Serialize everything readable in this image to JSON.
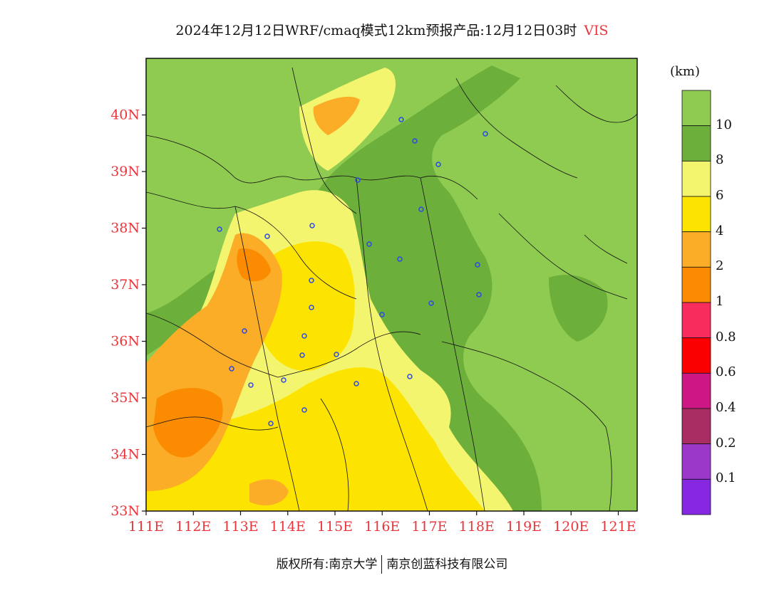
{
  "title": {
    "text": "2024年12月12日WRF/cmaq模式12km预报产品:12月12日03时",
    "variable": "VIS"
  },
  "colorbar": {
    "unit": "(km)",
    "bins": [
      {
        "color": "#8ecb50"
      },
      {
        "color": "#6caf3a"
      },
      {
        "color": "#f4f56e"
      },
      {
        "color": "#fde400"
      },
      {
        "color": "#fbad27"
      },
      {
        "color": "#fb8b01"
      },
      {
        "color": "#f82c5d"
      },
      {
        "color": "#fa0000"
      },
      {
        "color": "#cc1784"
      },
      {
        "color": "#a92d62"
      },
      {
        "color": "#9b37c9"
      },
      {
        "color": "#8628e2"
      }
    ],
    "labels": [
      "10",
      "8",
      "6",
      "4",
      "2",
      "1",
      "0.8",
      "0.6",
      "0.4",
      "0.2",
      "0.1"
    ]
  },
  "axes": {
    "lat_ticks": [
      "40N",
      "39N",
      "38N",
      "37N",
      "36N",
      "35N",
      "34N",
      "33N"
    ],
    "lon_ticks": [
      "111E",
      "112E",
      "113E",
      "114E",
      "115E",
      "116E",
      "117E",
      "118E",
      "119E",
      "120E",
      "121E"
    ],
    "lon_range": [
      111,
      121.4
    ],
    "lat_range": [
      33,
      41
    ]
  },
  "footer": {
    "left": "版权所有:南京大学",
    "right": "南京创蓝科技有限公司"
  }
}
